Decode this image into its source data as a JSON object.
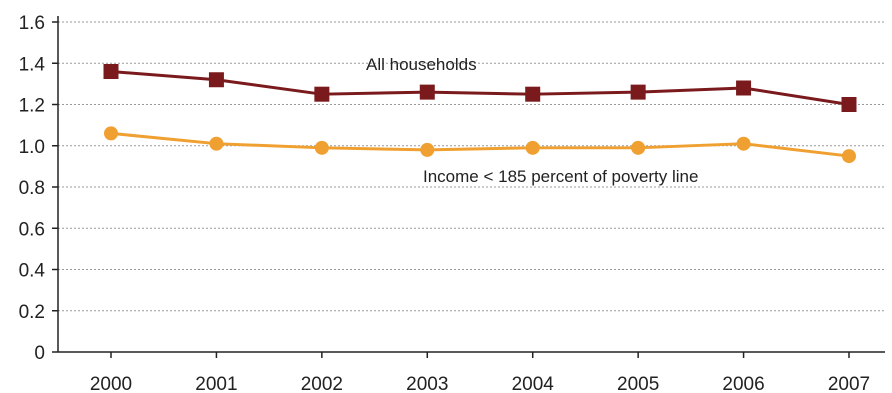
{
  "chart_data": {
    "type": "line",
    "categories": [
      "2000",
      "2001",
      "2002",
      "2003",
      "2004",
      "2005",
      "2006",
      "2007"
    ],
    "ylim": [
      0,
      1.6
    ],
    "yticks": [
      "0",
      "0.2",
      "0.4",
      "0.6",
      "0.8",
      "1.0",
      "1.2",
      "1.4",
      "1.6"
    ],
    "grid": true,
    "series": [
      {
        "name": "All households",
        "values": [
          1.36,
          1.32,
          1.25,
          1.26,
          1.25,
          1.26,
          1.28,
          1.2
        ],
        "color": "#7a1a1c",
        "marker": "square"
      },
      {
        "name": "Income < 185 percent of poverty line",
        "values": [
          1.06,
          1.01,
          0.99,
          0.98,
          0.99,
          0.99,
          1.01,
          0.95
        ],
        "color": "#f0a030",
        "marker": "circle"
      }
    ]
  }
}
